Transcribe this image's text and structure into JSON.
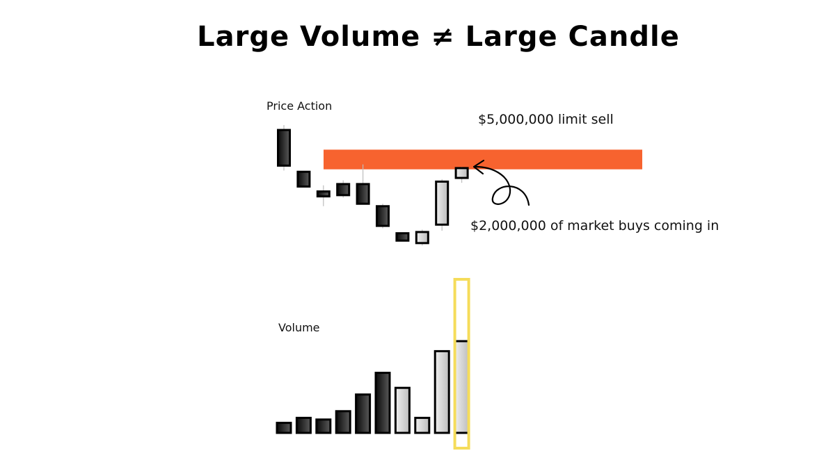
{
  "title": "Large Volume ≠ Large Candle",
  "labels": {
    "price_action": "Price Action",
    "volume": "Volume",
    "limit_sell": "$5,000,000 limit sell",
    "market_buys": "$2,000,000 of market buys coming in"
  },
  "colors": {
    "limit_zone": "#f7632f",
    "highlight": "#f5dc5a",
    "bearish_dark": "#111111",
    "bearish_light": "#555555",
    "bullish_fill": "#d8d8d8",
    "outline": "#000000",
    "wick": "#bdbdbd"
  },
  "price_candles": [
    {
      "open": 100,
      "close": 71,
      "high": 104,
      "low": 67,
      "direction": "down"
    },
    {
      "open": 66,
      "close": 54,
      "high": 66,
      "low": 54,
      "direction": "down"
    },
    {
      "open": 50,
      "close": 46,
      "high": 55,
      "low": 38,
      "direction": "down"
    },
    {
      "open": 56,
      "close": 47,
      "high": 59,
      "low": 45,
      "direction": "down"
    },
    {
      "open": 56,
      "close": 40,
      "high": 72,
      "low": 40,
      "direction": "down"
    },
    {
      "open": 38,
      "close": 22,
      "high": 40,
      "low": 20,
      "direction": "down"
    },
    {
      "open": 16,
      "close": 10,
      "high": 16,
      "low": 10,
      "direction": "down"
    },
    {
      "open": 8,
      "close": 17,
      "high": 19,
      "low": 6,
      "direction": "up"
    },
    {
      "open": 23,
      "close": 58,
      "high": 60,
      "low": 18,
      "direction": "up"
    },
    {
      "open": 61,
      "close": 69,
      "high": 70,
      "low": 57,
      "direction": "up"
    }
  ],
  "volume_bars": [
    {
      "value": 6,
      "direction": "down"
    },
    {
      "value": 9,
      "direction": "down"
    },
    {
      "value": 8,
      "direction": "down"
    },
    {
      "value": 13,
      "direction": "down"
    },
    {
      "value": 23,
      "direction": "down"
    },
    {
      "value": 36,
      "direction": "down"
    },
    {
      "value": 27,
      "direction": "up"
    },
    {
      "value": 9,
      "direction": "up"
    },
    {
      "value": 49,
      "direction": "up"
    },
    {
      "value": 55,
      "direction": "up"
    }
  ],
  "limit_zone": {
    "low": 68,
    "high": 84
  },
  "highlighted_bar": 9
}
